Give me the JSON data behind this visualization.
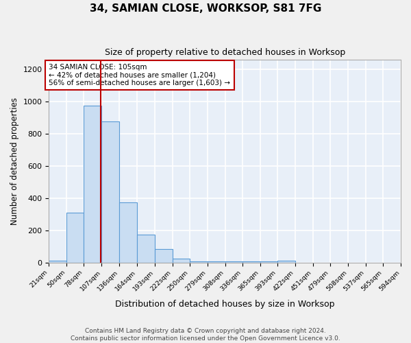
{
  "title": "34, SAMIAN CLOSE, WORKSOP, S81 7FG",
  "subtitle": "Size of property relative to detached houses in Worksop",
  "xlabel": "Distribution of detached houses by size in Worksop",
  "ylabel": "Number of detached properties",
  "footer_line1": "Contains HM Land Registry data © Crown copyright and database right 2024.",
  "footer_line2": "Contains public sector information licensed under the Open Government Licence v3.0.",
  "bar_heights": [
    10,
    310,
    975,
    875,
    375,
    175,
    83,
    25,
    5,
    5,
    5,
    5,
    5,
    10,
    0,
    0,
    0,
    0,
    0,
    0
  ],
  "bin_edges": [
    21,
    50,
    78,
    107,
    136,
    164,
    193,
    222,
    250,
    279,
    308,
    336,
    365,
    393,
    422,
    451,
    479,
    508,
    537,
    565,
    594
  ],
  "bin_labels": [
    "21sqm",
    "50sqm",
    "78sqm",
    "107sqm",
    "136sqm",
    "164sqm",
    "193sqm",
    "222sqm",
    "250sqm",
    "279sqm",
    "308sqm",
    "336sqm",
    "365sqm",
    "393sqm",
    "422sqm",
    "451sqm",
    "479sqm",
    "508sqm",
    "537sqm",
    "565sqm",
    "594sqm"
  ],
  "bar_color": "#c9ddf2",
  "bar_edge_color": "#5b9bd5",
  "background_color": "#e8eff8",
  "grid_color": "#ffffff",
  "red_line_value": 105,
  "red_line_color": "#bb0000",
  "annotation_text": "34 SAMIAN CLOSE: 105sqm\n← 42% of detached houses are smaller (1,204)\n56% of semi-detached houses are larger (1,603) →",
  "annotation_box_color": "#ffffff",
  "annotation_box_edge": "#bb0000",
  "ylim": [
    0,
    1260
  ],
  "yticks": [
    0,
    200,
    400,
    600,
    800,
    1000,
    1200
  ]
}
